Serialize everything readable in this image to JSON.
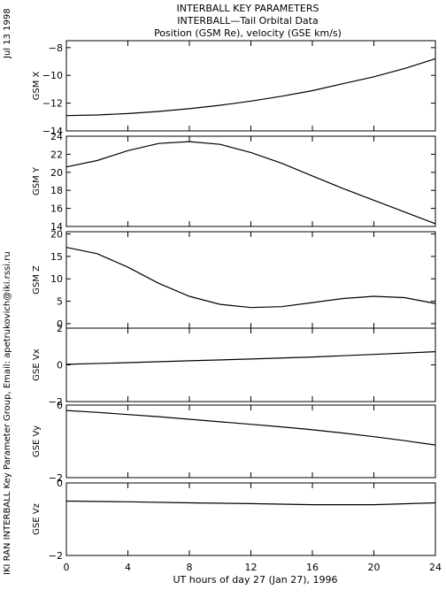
{
  "header": {
    "line1": "INTERBALL KEY PARAMETERS",
    "line2": "INTERBALL—Tail Orbital Data",
    "line3": "Position (GSM Re), velocity (GSE km/s)"
  },
  "side_date": "Jul 13 1998",
  "side_credit": "IKI RAN INTERBALL Key Parameter Group, Email: apetrukovich@iki.rssi.ru",
  "chart_data": {
    "type": "line",
    "xlabel": "UT hours of day  27 (Jan 27), 1996",
    "xlim": [
      0,
      24
    ],
    "xticks": [
      0,
      4,
      8,
      12,
      16,
      20,
      24
    ],
    "grid": false,
    "panels": [
      {
        "ylabel": "GSM X",
        "ylim": [
          -14,
          -7.5
        ],
        "yticks": [
          -14,
          -12,
          -10,
          -8
        ],
        "series": [
          {
            "x": [
              0,
              2,
              4,
              6,
              8,
              10,
              12,
              14,
              16,
              18,
              20,
              22,
              24
            ],
            "y": [
              -12.9,
              -12.85,
              -12.75,
              -12.6,
              -12.4,
              -12.15,
              -11.85,
              -11.5,
              -11.1,
              -10.6,
              -10.1,
              -9.5,
              -8.8
            ]
          }
        ]
      },
      {
        "ylabel": "GSM Y",
        "ylim": [
          14,
          24
        ],
        "yticks": [
          14,
          16,
          18,
          20,
          22,
          24
        ],
        "series": [
          {
            "x": [
              0,
              2,
              4,
              6,
              8,
              10,
              12,
              14,
              16,
              18,
              20,
              22,
              24
            ],
            "y": [
              20.6,
              21.3,
              22.4,
              23.2,
              23.4,
              23.1,
              22.2,
              21.0,
              19.6,
              18.2,
              16.9,
              15.6,
              14.3
            ]
          }
        ]
      },
      {
        "ylabel": "GSM Z",
        "ylim": [
          -1,
          20.5
        ],
        "yticks": [
          0,
          5,
          10,
          15,
          20
        ],
        "series": [
          {
            "x": [
              0,
              2,
              4,
              6,
              8,
              10,
              12,
              14,
              16,
              18,
              20,
              22,
              24
            ],
            "y": [
              17.0,
              15.6,
              12.6,
              9.0,
              6.1,
              4.3,
              3.6,
              3.8,
              4.7,
              5.6,
              6.1,
              5.8,
              4.5
            ]
          }
        ]
      },
      {
        "ylabel": "GSE Vx",
        "ylim": [
          -2,
          2
        ],
        "yticks": [
          -2,
          0,
          2
        ],
        "series": [
          {
            "x": [
              0,
              4,
              8,
              12,
              16,
              20,
              24
            ],
            "y": [
              0.03,
              0.12,
              0.22,
              0.32,
              0.43,
              0.57,
              0.72
            ]
          }
        ]
      },
      {
        "ylabel": "GSE Vy",
        "ylim": [
          -2,
          0
        ],
        "yticks": [
          -2,
          0
        ],
        "series": [
          {
            "x": [
              0,
              2,
              4,
              6,
              8,
              10,
              12,
              14,
              16,
              18,
              20,
              22,
              24
            ],
            "y": [
              -0.15,
              -0.2,
              -0.26,
              -0.32,
              -0.39,
              -0.46,
              -0.53,
              -0.6,
              -0.68,
              -0.77,
              -0.87,
              -0.98,
              -1.1
            ]
          }
        ]
      },
      {
        "ylabel": "GSE Vz",
        "ylim": [
          -2,
          0
        ],
        "yticks": [
          -2,
          0
        ],
        "series": [
          {
            "x": [
              0,
              4,
              8,
              12,
              16,
              20,
              24
            ],
            "y": [
              -0.5,
              -0.52,
              -0.55,
              -0.57,
              -0.6,
              -0.6,
              -0.55
            ]
          }
        ]
      }
    ]
  }
}
